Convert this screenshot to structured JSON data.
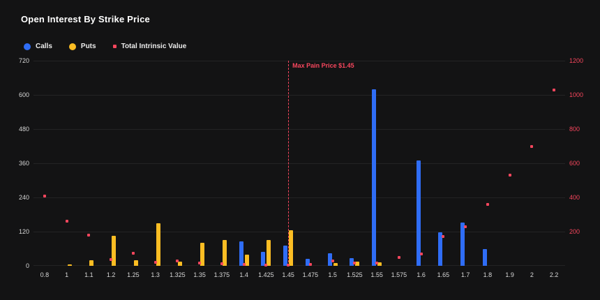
{
  "title": "Open Interest By Strike Price",
  "legend": {
    "calls": "Calls",
    "puts": "Puts",
    "tiv": "Total Intrinsic Value"
  },
  "colors": {
    "background": "#131314",
    "calls": "#2f6df6",
    "puts": "#fbbd23",
    "tiv": "#f6465d",
    "grid": "#232324",
    "axis_text": "#d6d6d6",
    "right_axis_text": "#f6465d"
  },
  "chart_data": {
    "type": "bar",
    "title": "Open Interest By Strike Price",
    "categories": [
      "0.8",
      "1",
      "1.1",
      "1.2",
      "1.25",
      "1.3",
      "1.325",
      "1.35",
      "1.375",
      "1.4",
      "1.425",
      "1.45",
      "1.475",
      "1.5",
      "1.525",
      "1.55",
      "1.575",
      "1.6",
      "1.65",
      "1.7",
      "1.8",
      "1.9",
      "2",
      "2.2"
    ],
    "series": [
      {
        "name": "Calls",
        "render": "bar",
        "axis": "left",
        "color": "#2f6df6",
        "values": [
          0,
          0,
          0,
          0,
          0,
          0,
          0,
          0,
          0,
          85,
          50,
          70,
          25,
          45,
          28,
          620,
          0,
          370,
          118,
          152,
          60,
          0,
          0,
          0
        ]
      },
      {
        "name": "Puts",
        "render": "bar",
        "axis": "left",
        "color": "#fbbd23",
        "values": [
          0,
          5,
          20,
          105,
          20,
          150,
          15,
          80,
          90,
          40,
          90,
          125,
          0,
          10,
          15,
          12,
          0,
          0,
          0,
          0,
          0,
          0,
          0,
          0
        ]
      },
      {
        "name": "Total Intrinsic Value",
        "render": "scatter",
        "axis": "right",
        "color": "#f6465d",
        "values": [
          410,
          260,
          180,
          35,
          75,
          20,
          30,
          15,
          12,
          8,
          6,
          5,
          10,
          30,
          18,
          15,
          50,
          70,
          170,
          230,
          360,
          530,
          700,
          1030
        ]
      }
    ],
    "left_axis": {
      "ticks": [
        0,
        120,
        240,
        360,
        480,
        600,
        720
      ],
      "max": 720
    },
    "right_axis": {
      "ticks": [
        200,
        400,
        600,
        800,
        1000,
        1200
      ],
      "max": 1200
    },
    "grid": true,
    "legend_position": "top-left",
    "annotation": {
      "label": "Max Pain Price $1.45",
      "x": "1.45"
    }
  }
}
